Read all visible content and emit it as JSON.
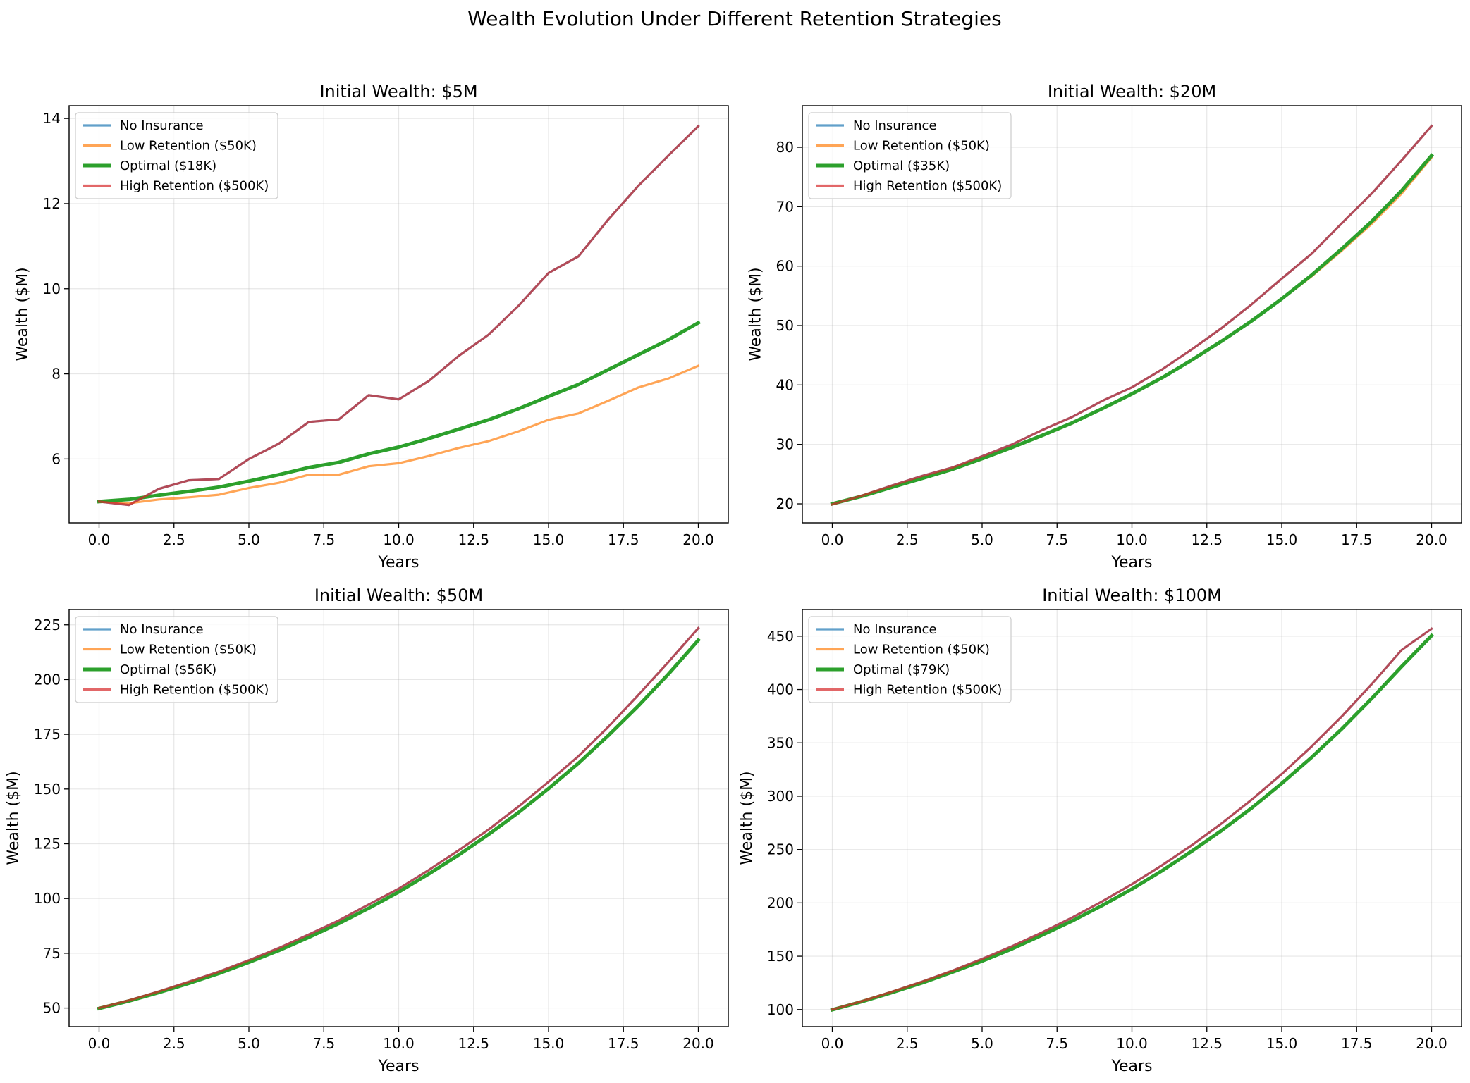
{
  "figure": {
    "title": "Wealth Evolution Under Different Retention Strategies"
  },
  "style": {
    "series_colors": [
      "#1f77b4",
      "#ff7f0e",
      "#2ca02c",
      "#d62728"
    ],
    "series_opacity": [
      0.7,
      0.7,
      1.0,
      0.7
    ],
    "grid": true,
    "legend_position": "top-left"
  },
  "chart_data": [
    {
      "type": "line",
      "title": "Initial Wealth: $5M",
      "xlabel": "Years",
      "ylabel": "Wealth ($M)",
      "xlim": [
        -1,
        21
      ],
      "ylim": [
        4.5,
        14.3
      ],
      "xticks": [
        "0.0",
        "2.5",
        "5.0",
        "7.5",
        "10.0",
        "12.5",
        "15.0",
        "17.5",
        "20.0"
      ],
      "yticks": [
        "6",
        "8",
        "10",
        "12",
        "14"
      ],
      "x": [
        0,
        1,
        2,
        3,
        4,
        5,
        6,
        7,
        8,
        9,
        10,
        11,
        12,
        13,
        14,
        15,
        16,
        17,
        18,
        19,
        20
      ],
      "series": [
        {
          "name": "No Insurance",
          "values": [
            5.0,
            4.92,
            5.3,
            5.5,
            5.53,
            6.0,
            6.36,
            6.87,
            6.93,
            7.5,
            7.4,
            7.83,
            8.42,
            8.92,
            9.6,
            10.37,
            10.76,
            11.63,
            12.42,
            13.13,
            13.82
          ]
        },
        {
          "name": "Low Retention ($50K)",
          "values": [
            5.0,
            4.96,
            5.05,
            5.1,
            5.16,
            5.32,
            5.44,
            5.63,
            5.63,
            5.83,
            5.9,
            6.07,
            6.26,
            6.42,
            6.65,
            6.92,
            7.07,
            7.37,
            7.68,
            7.89,
            8.19
          ]
        },
        {
          "name": "Optimal ($18K)",
          "values": [
            5.0,
            5.05,
            5.15,
            5.24,
            5.34,
            5.48,
            5.63,
            5.8,
            5.92,
            6.12,
            6.28,
            6.48,
            6.7,
            6.92,
            7.18,
            7.47,
            7.75,
            8.1,
            8.45,
            8.8,
            9.2
          ]
        },
        {
          "name": "High Retention ($500K)",
          "values": [
            5.0,
            4.92,
            5.3,
            5.5,
            5.53,
            6.0,
            6.36,
            6.87,
            6.93,
            7.5,
            7.4,
            7.83,
            8.42,
            8.92,
            9.6,
            10.37,
            10.76,
            11.63,
            12.42,
            13.13,
            13.82
          ]
        }
      ]
    },
    {
      "type": "line",
      "title": "Initial Wealth: $20M",
      "xlabel": "Years",
      "ylabel": "Wealth ($M)",
      "xlim": [
        -1,
        21
      ],
      "ylim": [
        16.8,
        87
      ],
      "xticks": [
        "0.0",
        "2.5",
        "5.0",
        "7.5",
        "10.0",
        "12.5",
        "15.0",
        "17.5",
        "20.0"
      ],
      "yticks": [
        "20",
        "30",
        "40",
        "50",
        "60",
        "70",
        "80"
      ],
      "x": [
        0,
        1,
        2,
        3,
        4,
        5,
        6,
        7,
        8,
        9,
        10,
        11,
        12,
        13,
        14,
        15,
        16,
        17,
        18,
        19,
        20
      ],
      "series": [
        {
          "name": "No Insurance",
          "values": [
            19.9,
            21.4,
            23.1,
            24.7,
            26.1,
            28.0,
            30.0,
            32.4,
            34.6,
            37.3,
            39.6,
            42.6,
            46.0,
            49.6,
            53.6,
            57.9,
            62.1,
            67.2,
            72.2,
            77.8,
            83.6
          ]
        },
        {
          "name": "Low Retention ($50K)",
          "values": [
            20.0,
            21.3,
            22.8,
            24.3,
            25.7,
            27.5,
            29.4,
            31.4,
            33.5,
            35.9,
            38.4,
            41.1,
            44.1,
            47.3,
            50.7,
            54.4,
            58.3,
            62.6,
            67.1,
            72.2,
            78.3
          ]
        },
        {
          "name": "Optimal ($35K)",
          "values": [
            20.0,
            21.3,
            22.8,
            24.3,
            25.8,
            27.6,
            29.5,
            31.5,
            33.6,
            36.0,
            38.5,
            41.2,
            44.2,
            47.4,
            50.8,
            54.5,
            58.5,
            62.9,
            67.5,
            72.7,
            78.6
          ]
        },
        {
          "name": "High Retention ($500K)",
          "values": [
            19.9,
            21.4,
            23.1,
            24.7,
            26.1,
            28.0,
            30.0,
            32.4,
            34.6,
            37.3,
            39.6,
            42.6,
            46.0,
            49.6,
            53.6,
            57.9,
            62.1,
            67.2,
            72.2,
            77.8,
            83.6
          ]
        }
      ]
    },
    {
      "type": "line",
      "title": "Initial Wealth: $50M",
      "xlabel": "Years",
      "ylabel": "Wealth ($M)",
      "xlim": [
        -1,
        21
      ],
      "ylim": [
        41.5,
        232
      ],
      "xticks": [
        "0.0",
        "2.5",
        "5.0",
        "7.5",
        "10.0",
        "12.5",
        "15.0",
        "17.5",
        "20.0"
      ],
      "yticks": [
        "50",
        "75",
        "100",
        "125",
        "150",
        "175",
        "200",
        "225"
      ],
      "x": [
        0,
        1,
        2,
        3,
        4,
        5,
        6,
        7,
        8,
        9,
        10,
        11,
        12,
        13,
        14,
        15,
        16,
        17,
        18,
        19,
        20
      ],
      "series": [
        {
          "name": "No Insurance",
          "values": [
            50.0,
            53.5,
            57.6,
            62.0,
            66.6,
            71.8,
            77.4,
            83.6,
            90.0,
            97.3,
            104.5,
            113.0,
            122.0,
            131.5,
            142.0,
            153.3,
            165.0,
            178.5,
            193.0,
            208.0,
            223.5
          ]
        },
        {
          "name": "Low Retention ($50K)",
          "values": [
            49.8,
            53.2,
            57.1,
            61.3,
            65.8,
            70.9,
            76.3,
            82.3,
            88.6,
            95.6,
            103.0,
            111.2,
            119.9,
            129.3,
            139.3,
            150.2,
            161.8,
            174.5,
            188.0,
            202.5,
            218.0
          ]
        },
        {
          "name": "Optimal ($56K)",
          "values": [
            49.8,
            53.2,
            57.1,
            61.3,
            65.8,
            70.9,
            76.3,
            82.3,
            88.6,
            95.6,
            103.0,
            111.2,
            119.9,
            129.3,
            139.3,
            150.2,
            161.8,
            174.5,
            188.0,
            202.5,
            218.0
          ]
        },
        {
          "name": "High Retention ($500K)",
          "values": [
            50.0,
            53.5,
            57.6,
            62.0,
            66.6,
            71.8,
            77.4,
            83.6,
            90.0,
            97.3,
            104.5,
            113.0,
            122.0,
            131.5,
            142.0,
            153.3,
            165.0,
            178.5,
            193.0,
            208.0,
            223.5
          ]
        }
      ]
    },
    {
      "type": "line",
      "title": "Initial Wealth: $100M",
      "xlabel": "Years",
      "ylabel": "Wealth ($M)",
      "xlim": [
        -1,
        21
      ],
      "ylim": [
        84,
        475
      ],
      "xticks": [
        "0.0",
        "2.5",
        "5.0",
        "7.5",
        "10.0",
        "12.5",
        "15.0",
        "17.5",
        "20.0"
      ],
      "yticks": [
        "100",
        "150",
        "200",
        "250",
        "300",
        "350",
        "400",
        "450"
      ],
      "x": [
        0,
        1,
        2,
        3,
        4,
        5,
        6,
        7,
        8,
        9,
        10,
        11,
        12,
        13,
        14,
        15,
        16,
        17,
        18,
        19,
        20
      ],
      "series": [
        {
          "name": "No Insurance",
          "values": [
            100.0,
            108.0,
            116.8,
            126.2,
            136.4,
            147.5,
            159.4,
            172.3,
            186.2,
            201.3,
            217.5,
            235.2,
            254.1,
            274.6,
            296.8,
            320.8,
            346.7,
            374.7,
            405.0,
            437.0,
            457.0
          ]
        },
        {
          "name": "Low Retention ($50K)",
          "values": [
            99.8,
            107.5,
            116.0,
            125.0,
            135.0,
            145.5,
            157.0,
            169.8,
            183.0,
            197.5,
            213.0,
            230.0,
            248.5,
            268.0,
            289.0,
            312.0,
            336.5,
            363.0,
            391.5,
            421.5,
            450.5
          ]
        },
        {
          "name": "Optimal ($79K)",
          "values": [
            99.8,
            107.5,
            116.0,
            125.0,
            135.0,
            145.5,
            157.0,
            169.8,
            183.0,
            197.5,
            213.0,
            230.0,
            248.5,
            268.0,
            289.0,
            312.0,
            336.5,
            363.0,
            391.5,
            421.5,
            450.5
          ]
        },
        {
          "name": "High Retention ($500K)",
          "values": [
            100.0,
            108.0,
            116.8,
            126.2,
            136.4,
            147.5,
            159.4,
            172.3,
            186.2,
            201.3,
            217.5,
            235.2,
            254.1,
            274.6,
            296.8,
            320.8,
            346.7,
            374.7,
            405.0,
            437.0,
            457.0
          ]
        }
      ]
    }
  ]
}
